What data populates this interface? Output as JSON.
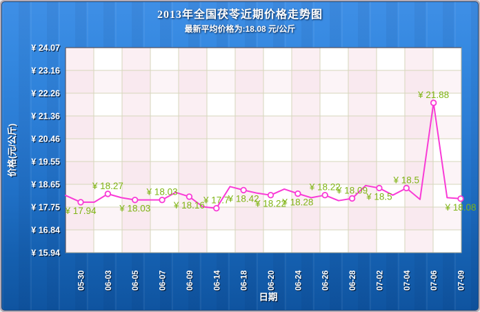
{
  "header": {
    "title": "2013年全国茯苓近期价格走势图",
    "subtitle": "最新平均价格为:18.08 元/公斤",
    "latest_average_price": "18.08"
  },
  "chart_data": {
    "type": "line",
    "title": "2013年全国茯苓近期价格走势图",
    "xlabel": "日期",
    "ylabel": "价格(元/公斤)",
    "categories": [
      "05-30",
      "06-03",
      "06-05",
      "06-07",
      "06-09",
      "06-14",
      "06-18",
      "06-20",
      "06-24",
      "06-26",
      "06-28",
      "07-02",
      "07-04",
      "07-06",
      "07-09"
    ],
    "values": [
      17.94,
      18.27,
      18.03,
      18.03,
      18.16,
      17.7,
      18.42,
      18.22,
      18.28,
      18.22,
      18.09,
      18.5,
      18.5,
      21.88,
      18.08
    ],
    "point_label_prefix": "¥ ",
    "point_label_side": [
      "below",
      "above",
      "below",
      "above",
      "below",
      "above",
      "below",
      "below",
      "below",
      "above",
      "above",
      "below",
      "above",
      "above",
      "below"
    ],
    "midpoint_values": [
      17.94,
      18.12,
      18.03,
      18.33,
      17.76,
      18.56,
      18.3,
      18.46,
      18.12,
      18.0,
      18.6,
      18.22,
      18.05,
      18.12
    ],
    "lead_in_value": 18.21,
    "y_ticks": [
      24.07,
      23.16,
      22.26,
      21.36,
      20.46,
      19.55,
      18.65,
      17.75,
      16.84,
      15.94
    ],
    "y_tick_prefix": "¥ ",
    "ylim": [
      15.94,
      24.07
    ],
    "grid": true,
    "legend_position": "none",
    "colors": {
      "line": "#f93ad6",
      "marker_fill": "#ffffff",
      "point_label": "#7fb414",
      "grid": "#d6d6bb",
      "band_pink": "#f7dfe8",
      "plot_bg": "#ffffff",
      "axis_text": "#ffffff",
      "panel_top": "#3f8fe6",
      "panel_bottom": "#0f54a0"
    }
  }
}
